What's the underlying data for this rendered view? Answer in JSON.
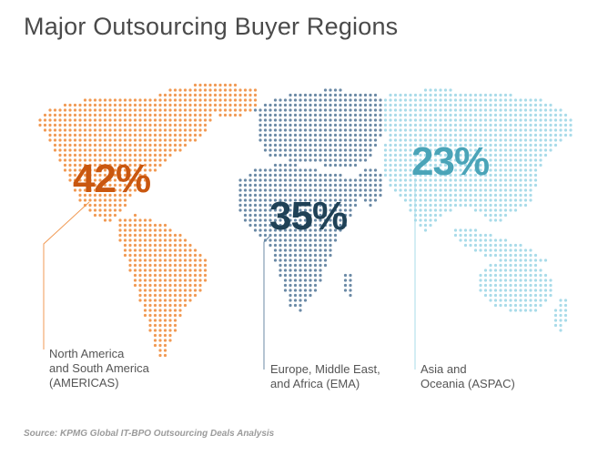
{
  "title": "Major Outsourcing Buyer Regions",
  "source": "Source: KPMG Global IT-BPO Outsourcing Deals Analysis",
  "colors": {
    "americas": "#f19a54",
    "americas_text": "#c9570f",
    "ema": "#6b8aa6",
    "ema_text": "#1f4156",
    "aspac": "#a9dbe9",
    "aspac_text": "#4aa4b8"
  },
  "regions": [
    {
      "id": "americas",
      "percent_label": "42%",
      "label_lines": [
        "North America",
        "and South America",
        "(AMERICAS)"
      ]
    },
    {
      "id": "ema",
      "percent_label": "35%",
      "label_lines": [
        "Europe, Middle East,",
        "and Africa (EMA)"
      ]
    },
    {
      "id": "aspac",
      "percent_label": "23%",
      "label_lines": [
        "Asia and",
        "Oceania (ASPAC)"
      ]
    }
  ]
}
